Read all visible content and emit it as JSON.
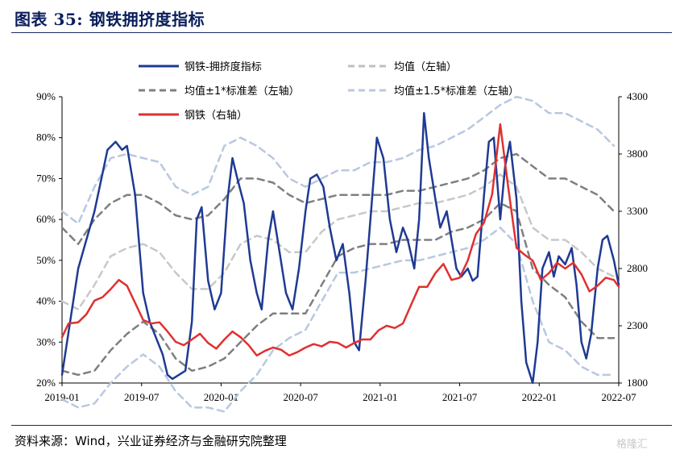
{
  "title": "图表 35:  钢铁拥挤度指标",
  "source": "资料来源：Wind，兴业证券经济与金融研究院整理",
  "watermark": "格隆汇",
  "chart_data": {
    "type": "line",
    "y_left": {
      "ticks": [
        "90%",
        "80%",
        "70%",
        "60%",
        "50%",
        "40%",
        "30%",
        "20%"
      ],
      "range": [
        20,
        90
      ]
    },
    "y_right": {
      "ticks": [
        "4300",
        "3800",
        "3300",
        "2800",
        "2300",
        "1800"
      ],
      "range": [
        1800,
        4300
      ]
    },
    "x_ticks": [
      "2019-01",
      "2019-07",
      "2020-01",
      "2020-07",
      "2021-01",
      "2021-07",
      "2022-01",
      "2022-07"
    ],
    "legend": [
      {
        "key": "crowd",
        "label": "钢铁-拥挤度指标",
        "color": "#1f3a93",
        "style": "solid"
      },
      {
        "key": "mean",
        "label": "均值（左轴）",
        "color": "#bfbfbf",
        "style": "dashed"
      },
      {
        "key": "sd1",
        "label": "均值±1*标准差（左轴）",
        "color": "#7f7f7f",
        "style": "dashed"
      },
      {
        "key": "sd15",
        "label": "均值±1.5*标准差（左轴）",
        "color": "#b8c8e0",
        "style": "dashed"
      },
      {
        "key": "steel",
        "label": "钢铁（右轴）",
        "color": "#e03030",
        "style": "solid"
      }
    ],
    "series": {
      "crowd": [
        [
          0,
          22
        ],
        [
          1,
          48
        ],
        [
          2,
          62
        ],
        [
          2.8,
          77
        ],
        [
          3.3,
          79
        ],
        [
          3.7,
          77
        ],
        [
          4,
          78
        ],
        [
          4.5,
          66
        ],
        [
          5,
          42
        ],
        [
          5.4,
          35
        ],
        [
          5.8,
          31
        ],
        [
          6.2,
          27
        ],
        [
          6.5,
          22
        ],
        [
          6.8,
          21
        ],
        [
          7.2,
          22
        ],
        [
          7.6,
          23
        ],
        [
          8,
          35
        ],
        [
          8.3,
          60
        ],
        [
          8.6,
          63
        ],
        [
          9,
          45
        ],
        [
          9.4,
          38
        ],
        [
          9.8,
          42
        ],
        [
          10.2,
          65
        ],
        [
          10.5,
          75
        ],
        [
          10.8,
          70
        ],
        [
          11.2,
          64
        ],
        [
          11.6,
          50
        ],
        [
          12,
          42
        ],
        [
          12.3,
          38
        ],
        [
          12.7,
          55
        ],
        [
          13,
          62
        ],
        [
          13.4,
          52
        ],
        [
          13.8,
          42
        ],
        [
          14.2,
          38
        ],
        [
          14.6,
          48
        ],
        [
          15,
          62
        ],
        [
          15.3,
          70
        ],
        [
          15.7,
          71
        ],
        [
          16.1,
          68
        ],
        [
          16.5,
          58
        ],
        [
          16.9,
          50
        ],
        [
          17.3,
          54
        ],
        [
          17.7,
          42
        ],
        [
          18,
          30
        ],
        [
          18.3,
          28
        ],
        [
          18.7,
          45
        ],
        [
          19.1,
          65
        ],
        [
          19.4,
          80
        ],
        [
          19.8,
          75
        ],
        [
          20.2,
          60
        ],
        [
          20.6,
          52
        ],
        [
          21,
          58
        ],
        [
          21.3,
          55
        ],
        [
          21.7,
          48
        ],
        [
          22,
          60
        ],
        [
          22.3,
          86
        ],
        [
          22.6,
          75
        ],
        [
          23,
          65
        ],
        [
          23.3,
          58
        ],
        [
          23.7,
          62
        ],
        [
          24,
          55
        ],
        [
          24.3,
          48
        ],
        [
          24.6,
          46
        ],
        [
          25,
          48
        ],
        [
          25.3,
          45
        ],
        [
          25.6,
          46
        ],
        [
          26,
          66
        ],
        [
          26.3,
          79
        ],
        [
          26.6,
          80
        ],
        [
          27,
          60
        ],
        [
          27.3,
          73
        ],
        [
          27.6,
          79
        ],
        [
          28,
          65
        ],
        [
          28.3,
          40
        ],
        [
          28.6,
          25
        ],
        [
          29,
          20
        ],
        [
          29.3,
          30
        ],
        [
          29.6,
          48
        ],
        [
          30,
          52
        ],
        [
          30.3,
          46
        ],
        [
          30.6,
          51
        ],
        [
          31,
          49
        ],
        [
          31.4,
          53
        ],
        [
          31.7,
          44
        ],
        [
          32,
          30
        ],
        [
          32.3,
          26
        ],
        [
          32.6,
          32
        ],
        [
          33,
          48
        ],
        [
          33.3,
          55
        ],
        [
          33.6,
          56
        ],
        [
          34,
          50
        ],
        [
          34.3,
          44
        ]
      ],
      "steel": [
        [
          0,
          2200
        ],
        [
          0.4,
          2320
        ],
        [
          1,
          2330
        ],
        [
          1.5,
          2400
        ],
        [
          2,
          2520
        ],
        [
          2.5,
          2550
        ],
        [
          3,
          2620
        ],
        [
          3.5,
          2700
        ],
        [
          4,
          2650
        ],
        [
          4.5,
          2500
        ],
        [
          5,
          2350
        ],
        [
          5.5,
          2320
        ],
        [
          6,
          2330
        ],
        [
          6.5,
          2250
        ],
        [
          7,
          2160
        ],
        [
          7.5,
          2130
        ],
        [
          8,
          2180
        ],
        [
          8.5,
          2230
        ],
        [
          9,
          2150
        ],
        [
          9.5,
          2100
        ],
        [
          10,
          2180
        ],
        [
          10.5,
          2250
        ],
        [
          11,
          2200
        ],
        [
          11.5,
          2130
        ],
        [
          12,
          2040
        ],
        [
          12.5,
          2080
        ],
        [
          13,
          2110
        ],
        [
          13.5,
          2090
        ],
        [
          14,
          2040
        ],
        [
          14.5,
          2070
        ],
        [
          15,
          2110
        ],
        [
          15.5,
          2140
        ],
        [
          16,
          2120
        ],
        [
          16.5,
          2160
        ],
        [
          17,
          2150
        ],
        [
          17.5,
          2110
        ],
        [
          18,
          2150
        ],
        [
          18.5,
          2180
        ],
        [
          19,
          2180
        ],
        [
          19.5,
          2260
        ],
        [
          20,
          2300
        ],
        [
          20.5,
          2280
        ],
        [
          21,
          2320
        ],
        [
          21.5,
          2480
        ],
        [
          22,
          2640
        ],
        [
          22.5,
          2640
        ],
        [
          23,
          2760
        ],
        [
          23.5,
          2840
        ],
        [
          24,
          2700
        ],
        [
          24.5,
          2720
        ],
        [
          25,
          2870
        ],
        [
          25.5,
          3100
        ],
        [
          26,
          3200
        ],
        [
          26.5,
          3450
        ],
        [
          27,
          4060
        ],
        [
          27.5,
          3500
        ],
        [
          28,
          2980
        ],
        [
          28.5,
          2920
        ],
        [
          29,
          2870
        ],
        [
          29.5,
          2700
        ],
        [
          30,
          2760
        ],
        [
          30.5,
          2850
        ],
        [
          31,
          2800
        ],
        [
          31.5,
          2850
        ],
        [
          32,
          2750
        ],
        [
          32.5,
          2600
        ],
        [
          33,
          2650
        ],
        [
          33.5,
          2720
        ],
        [
          34,
          2700
        ],
        [
          34.3,
          2640
        ]
      ],
      "mean": [
        [
          0,
          40
        ],
        [
          1,
          38
        ],
        [
          2,
          44
        ],
        [
          3,
          51
        ],
        [
          4,
          53
        ],
        [
          5,
          54
        ],
        [
          6,
          52
        ],
        [
          7,
          47
        ],
        [
          8,
          43
        ],
        [
          9,
          43
        ],
        [
          10,
          47
        ],
        [
          11,
          54
        ],
        [
          12,
          56
        ],
        [
          13,
          55
        ],
        [
          14,
          52
        ],
        [
          15,
          52
        ],
        [
          16,
          57
        ],
        [
          17,
          60
        ],
        [
          18,
          61
        ],
        [
          19,
          62
        ],
        [
          20,
          62
        ],
        [
          21,
          63
        ],
        [
          22,
          64
        ],
        [
          23,
          64
        ],
        [
          24,
          65
        ],
        [
          25,
          66
        ],
        [
          26,
          68
        ],
        [
          27,
          71
        ],
        [
          28,
          68
        ],
        [
          29,
          58
        ],
        [
          30,
          55
        ],
        [
          31,
          55
        ],
        [
          32,
          52
        ],
        [
          33,
          48
        ],
        [
          34,
          46
        ]
      ],
      "sd1_up": [
        [
          0,
          58
        ],
        [
          1,
          54
        ],
        [
          2,
          60
        ],
        [
          3,
          64
        ],
        [
          4,
          66
        ],
        [
          5,
          66
        ],
        [
          6,
          64
        ],
        [
          7,
          61
        ],
        [
          8,
          60
        ],
        [
          9,
          61
        ],
        [
          10,
          65
        ],
        [
          11,
          70
        ],
        [
          12,
          70
        ],
        [
          13,
          69
        ],
        [
          14,
          66
        ],
        [
          15,
          64
        ],
        [
          16,
          65
        ],
        [
          17,
          66
        ],
        [
          18,
          66
        ],
        [
          19,
          66
        ],
        [
          20,
          66
        ],
        [
          21,
          67
        ],
        [
          22,
          67
        ],
        [
          23,
          68
        ],
        [
          24,
          69
        ],
        [
          25,
          70
        ],
        [
          26,
          72
        ],
        [
          27,
          75
        ],
        [
          28,
          76
        ],
        [
          29,
          73
        ],
        [
          30,
          70
        ],
        [
          31,
          70
        ],
        [
          32,
          68
        ],
        [
          33,
          66
        ],
        [
          34,
          62
        ]
      ],
      "sd1_lo": [
        [
          0,
          23
        ],
        [
          1,
          22
        ],
        [
          2,
          23
        ],
        [
          3,
          28
        ],
        [
          4,
          32
        ],
        [
          5,
          35
        ],
        [
          6,
          32
        ],
        [
          7,
          26
        ],
        [
          8,
          23
        ],
        [
          9,
          24
        ],
        [
          10,
          26
        ],
        [
          11,
          30
        ],
        [
          12,
          34
        ],
        [
          13,
          37
        ],
        [
          14,
          37
        ],
        [
          15,
          37
        ],
        [
          16,
          44
        ],
        [
          17,
          51
        ],
        [
          18,
          53
        ],
        [
          19,
          54
        ],
        [
          20,
          54
        ],
        [
          21,
          55
        ],
        [
          22,
          55
        ],
        [
          23,
          55
        ],
        [
          24,
          57
        ],
        [
          25,
          58
        ],
        [
          26,
          60
        ],
        [
          27,
          64
        ],
        [
          28,
          62
        ],
        [
          29,
          48
        ],
        [
          30,
          44
        ],
        [
          31,
          41
        ],
        [
          32,
          35
        ],
        [
          33,
          31
        ],
        [
          34,
          31
        ]
      ],
      "sd15_up": [
        [
          0,
          62
        ],
        [
          1,
          59
        ],
        [
          2,
          68
        ],
        [
          3,
          75
        ],
        [
          4,
          76
        ],
        [
          5,
          75
        ],
        [
          6,
          74
        ],
        [
          7,
          68
        ],
        [
          8,
          66
        ],
        [
          9,
          68
        ],
        [
          10,
          78
        ],
        [
          11,
          80
        ],
        [
          12,
          78
        ],
        [
          13,
          75
        ],
        [
          14,
          70
        ],
        [
          15,
          68
        ],
        [
          16,
          70
        ],
        [
          17,
          72
        ],
        [
          18,
          72
        ],
        [
          19,
          74
        ],
        [
          20,
          74
        ],
        [
          21,
          75
        ],
        [
          22,
          77
        ],
        [
          23,
          78
        ],
        [
          24,
          80
        ],
        [
          25,
          82
        ],
        [
          26,
          85
        ],
        [
          27,
          88
        ],
        [
          28,
          90
        ],
        [
          29,
          89
        ],
        [
          30,
          86
        ],
        [
          31,
          86
        ],
        [
          32,
          84
        ],
        [
          33,
          82
        ],
        [
          34,
          78
        ]
      ],
      "sd15_lo": [
        [
          0,
          16
        ],
        [
          1,
          14
        ],
        [
          2,
          15
        ],
        [
          3,
          20
        ],
        [
          4,
          24
        ],
        [
          5,
          27
        ],
        [
          6,
          24
        ],
        [
          7,
          18
        ],
        [
          8,
          14
        ],
        [
          9,
          14
        ],
        [
          10,
          13
        ],
        [
          11,
          18
        ],
        [
          12,
          22
        ],
        [
          13,
          28
        ],
        [
          14,
          31
        ],
        [
          15,
          33
        ],
        [
          16,
          40
        ],
        [
          17,
          47
        ],
        [
          18,
          47
        ],
        [
          19,
          48
        ],
        [
          20,
          49
        ],
        [
          21,
          50
        ],
        [
          22,
          50
        ],
        [
          23,
          51
        ],
        [
          24,
          52
        ],
        [
          25,
          53
        ],
        [
          26,
          55
        ],
        [
          27,
          58
        ],
        [
          28,
          54
        ],
        [
          29,
          40
        ],
        [
          30,
          30
        ],
        [
          31,
          28
        ],
        [
          32,
          24
        ],
        [
          33,
          22
        ],
        [
          34,
          22
        ]
      ]
    }
  }
}
